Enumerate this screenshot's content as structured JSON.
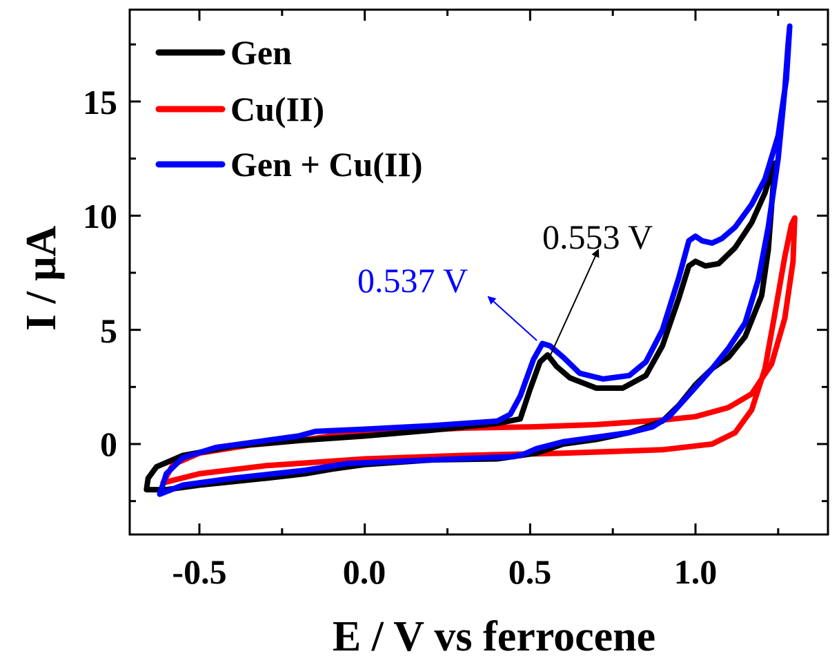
{
  "chart_data": {
    "type": "line",
    "title": "",
    "xlabel": "E / V vs ferrocene",
    "ylabel": "I / μA",
    "xlim": [
      -0.7,
      1.35
    ],
    "ylim": [
      -4,
      19
    ],
    "x_ticks": [
      -0.5,
      0.0,
      0.5,
      1.0
    ],
    "x_tick_labels": [
      "-0.5",
      "0.0",
      "0.5",
      "1.0"
    ],
    "y_ticks": [
      0,
      5,
      10,
      15
    ],
    "y_tick_labels": [
      "0",
      "5",
      "10",
      "15"
    ],
    "legend_position": "top-left",
    "series": [
      {
        "name": "Gen",
        "color": "#000000",
        "points": [
          [
            -0.66,
            -2.0
          ],
          [
            -0.655,
            -1.5
          ],
          [
            -0.63,
            -1.0
          ],
          [
            -0.55,
            -0.5
          ],
          [
            -0.4,
            -0.1
          ],
          [
            -0.2,
            0.15
          ],
          [
            0.0,
            0.35
          ],
          [
            0.2,
            0.6
          ],
          [
            0.4,
            0.9
          ],
          [
            0.47,
            1.1
          ],
          [
            0.5,
            2.4
          ],
          [
            0.53,
            3.6
          ],
          [
            0.553,
            3.9
          ],
          [
            0.58,
            3.4
          ],
          [
            0.62,
            2.9
          ],
          [
            0.7,
            2.45
          ],
          [
            0.78,
            2.45
          ],
          [
            0.85,
            3.0
          ],
          [
            0.9,
            4.3
          ],
          [
            0.95,
            6.4
          ],
          [
            0.98,
            7.8
          ],
          [
            1.0,
            8.0
          ],
          [
            1.03,
            7.8
          ],
          [
            1.07,
            7.9
          ],
          [
            1.12,
            8.6
          ],
          [
            1.17,
            9.7
          ],
          [
            1.21,
            11.0
          ],
          [
            1.235,
            12.2
          ],
          [
            1.24,
            12.3
          ],
          [
            1.22,
            8.5
          ],
          [
            1.2,
            6.5
          ],
          [
            1.15,
            4.7
          ],
          [
            1.1,
            3.8
          ],
          [
            1.05,
            3.3
          ],
          [
            1.0,
            2.6
          ],
          [
            0.95,
            1.7
          ],
          [
            0.9,
            1.0
          ],
          [
            0.8,
            0.5
          ],
          [
            0.7,
            0.2
          ],
          [
            0.6,
            0.0
          ],
          [
            0.52,
            -0.4
          ],
          [
            0.4,
            -0.65
          ],
          [
            0.2,
            -0.7
          ],
          [
            0.0,
            -0.9
          ],
          [
            -0.1,
            -1.1
          ],
          [
            -0.18,
            -1.3
          ],
          [
            -0.3,
            -1.5
          ],
          [
            -0.5,
            -1.8
          ],
          [
            -0.6,
            -2.0
          ],
          [
            -0.66,
            -2.0
          ]
        ]
      },
      {
        "name": "Cu(II)",
        "color": "#ff0000",
        "points": [
          [
            -0.61,
            -1.7
          ],
          [
            -0.5,
            -1.3
          ],
          [
            -0.3,
            -0.95
          ],
          [
            0.0,
            -0.65
          ],
          [
            0.3,
            -0.5
          ],
          [
            0.6,
            -0.4
          ],
          [
            0.9,
            -0.25
          ],
          [
            1.05,
            0.0
          ],
          [
            1.12,
            0.5
          ],
          [
            1.17,
            1.5
          ],
          [
            1.21,
            3.3
          ],
          [
            1.24,
            5.7
          ],
          [
            1.27,
            8.2
          ],
          [
            1.29,
            9.6
          ],
          [
            1.3,
            9.9
          ],
          [
            1.295,
            8.0
          ],
          [
            1.27,
            5.5
          ],
          [
            1.23,
            3.5
          ],
          [
            1.17,
            2.2
          ],
          [
            1.1,
            1.6
          ],
          [
            1.0,
            1.2
          ],
          [
            0.9,
            1.05
          ],
          [
            0.7,
            0.85
          ],
          [
            0.5,
            0.75
          ],
          [
            0.3,
            0.7
          ],
          [
            0.1,
            0.55
          ],
          [
            -0.1,
            0.35
          ],
          [
            -0.2,
            0.15
          ],
          [
            -0.35,
            -0.05
          ],
          [
            -0.5,
            -0.4
          ],
          [
            -0.58,
            -0.9
          ],
          [
            -0.61,
            -1.7
          ]
        ]
      },
      {
        "name": "Gen + Cu(II)",
        "color": "#0000ff",
        "points": [
          [
            -0.62,
            -2.2
          ],
          [
            -0.55,
            -1.8
          ],
          [
            -0.4,
            -1.5
          ],
          [
            -0.18,
            -1.15
          ],
          [
            -0.05,
            -0.85
          ],
          [
            0.2,
            -0.7
          ],
          [
            0.45,
            -0.55
          ],
          [
            0.48,
            -0.45
          ],
          [
            0.52,
            -0.2
          ],
          [
            0.6,
            0.1
          ],
          [
            0.7,
            0.3
          ],
          [
            0.8,
            0.5
          ],
          [
            0.87,
            0.75
          ],
          [
            0.92,
            1.2
          ],
          [
            0.97,
            2.0
          ],
          [
            1.05,
            3.3
          ],
          [
            1.1,
            4.2
          ],
          [
            1.15,
            5.3
          ],
          [
            1.19,
            7.2
          ],
          [
            1.22,
            9.5
          ],
          [
            1.25,
            12.5
          ],
          [
            1.27,
            15.5
          ],
          [
            1.28,
            17.5
          ],
          [
            1.285,
            18.3
          ],
          [
            1.275,
            16.0
          ],
          [
            1.25,
            13.5
          ],
          [
            1.21,
            11.6
          ],
          [
            1.17,
            10.5
          ],
          [
            1.12,
            9.5
          ],
          [
            1.08,
            9.0
          ],
          [
            1.05,
            8.8
          ],
          [
            1.02,
            8.9
          ],
          [
            1.0,
            9.1
          ],
          [
            0.98,
            8.9
          ],
          [
            0.95,
            7.3
          ],
          [
            0.9,
            5.0
          ],
          [
            0.85,
            3.6
          ],
          [
            0.8,
            3.0
          ],
          [
            0.72,
            2.85
          ],
          [
            0.65,
            3.1
          ],
          [
            0.6,
            3.8
          ],
          [
            0.56,
            4.3
          ],
          [
            0.537,
            4.4
          ],
          [
            0.51,
            3.7
          ],
          [
            0.47,
            2.1
          ],
          [
            0.44,
            1.3
          ],
          [
            0.4,
            1.0
          ],
          [
            0.2,
            0.8
          ],
          [
            0.0,
            0.65
          ],
          [
            -0.15,
            0.55
          ],
          [
            -0.2,
            0.35
          ],
          [
            -0.3,
            0.15
          ],
          [
            -0.45,
            -0.15
          ],
          [
            -0.55,
            -0.6
          ],
          [
            -0.6,
            -1.3
          ],
          [
            -0.62,
            -2.2
          ]
        ]
      }
    ],
    "annotations": [
      {
        "text": "0.537 V",
        "color": "#0000ff",
        "target": [
          0.537,
          4.4
        ]
      },
      {
        "text": "0.553 V",
        "color": "#000000",
        "target": [
          0.553,
          3.9
        ]
      }
    ]
  }
}
